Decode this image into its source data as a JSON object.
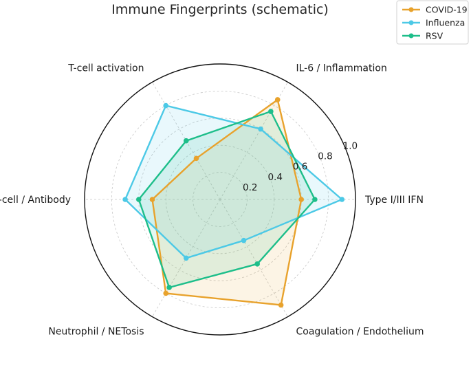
{
  "chart_data": {
    "type": "radar",
    "title": "Immune Fingerprints (schematic)",
    "axes": [
      "Type I/III IFN",
      "IL-6 / Inflammation",
      "T-cell activation",
      "B-cell / Antibody",
      "Neutrophil / NETosis",
      "Coagulation / Endothelium"
    ],
    "rlim": [
      0,
      1.0
    ],
    "rticks": [
      "0.2",
      "0.4",
      "0.6",
      "0.8",
      "1.0"
    ],
    "rtick_values": [
      0.2,
      0.4,
      0.6,
      0.8,
      1.0
    ],
    "grid": true,
    "legend_placement": "top-right",
    "series": [
      {
        "name": "COVID-19",
        "color": "#E8A22C",
        "values": [
          0.6,
          0.85,
          0.35,
          0.5,
          0.8,
          0.9
        ]
      },
      {
        "name": "Influenza",
        "color": "#4CC9E6",
        "values": [
          0.9,
          0.6,
          0.8,
          0.7,
          0.5,
          0.35
        ]
      },
      {
        "name": "RSV",
        "color": "#1DBE8A",
        "values": [
          0.7,
          0.75,
          0.5,
          0.6,
          0.75,
          0.55
        ]
      }
    ]
  }
}
